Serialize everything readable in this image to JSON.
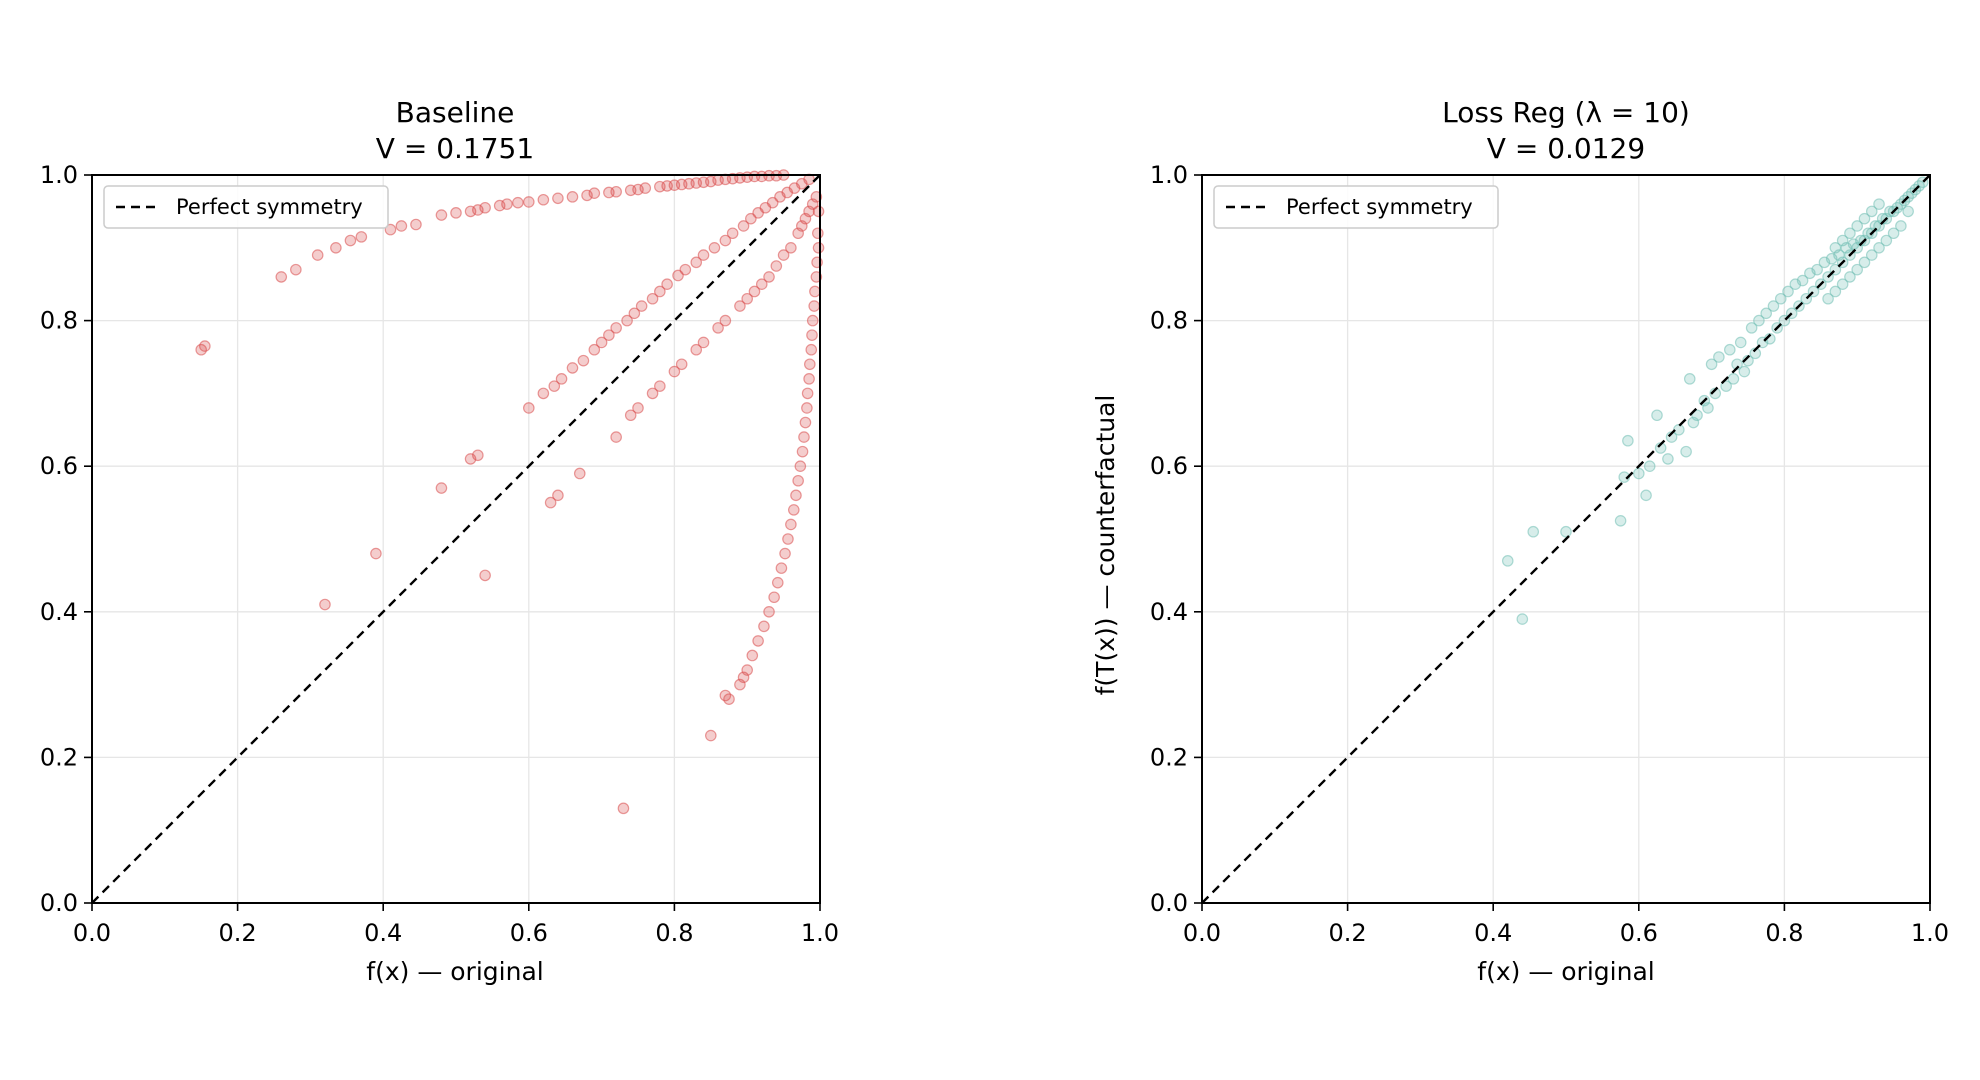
{
  "chart_data": [
    {
      "type": "scatter",
      "title": "Baseline",
      "subtitle": "V = 0.1751",
      "xlabel": "f(x)  — original",
      "ylabel": "",
      "xlim": [
        0,
        1
      ],
      "ylim": [
        0,
        1
      ],
      "xticks": [
        "0.0",
        "0.2",
        "0.4",
        "0.6",
        "0.8",
        "1.0"
      ],
      "yticks": [
        "0.0",
        "0.2",
        "0.4",
        "0.6",
        "0.8",
        "1.0"
      ],
      "grid": true,
      "legend": {
        "placement": "top-left",
        "entries": [
          "Perfect symmetry"
        ]
      },
      "reference_line": {
        "name": "Perfect symmetry",
        "from": [
          0,
          0
        ],
        "to": [
          1,
          1
        ],
        "style": "dashed",
        "color": "#000000"
      },
      "point_color": "#d94a4a",
      "points": [
        [
          0.15,
          0.76
        ],
        [
          0.155,
          0.765
        ],
        [
          0.26,
          0.86
        ],
        [
          0.28,
          0.87
        ],
        [
          0.31,
          0.89
        ],
        [
          0.335,
          0.9
        ],
        [
          0.355,
          0.91
        ],
        [
          0.37,
          0.915
        ],
        [
          0.41,
          0.925
        ],
        [
          0.425,
          0.93
        ],
        [
          0.445,
          0.932
        ],
        [
          0.48,
          0.945
        ],
        [
          0.5,
          0.948
        ],
        [
          0.52,
          0.95
        ],
        [
          0.53,
          0.952
        ],
        [
          0.54,
          0.955
        ],
        [
          0.56,
          0.958
        ],
        [
          0.57,
          0.96
        ],
        [
          0.585,
          0.962
        ],
        [
          0.6,
          0.963
        ],
        [
          0.62,
          0.966
        ],
        [
          0.64,
          0.968
        ],
        [
          0.66,
          0.97
        ],
        [
          0.68,
          0.972
        ],
        [
          0.69,
          0.975
        ],
        [
          0.71,
          0.976
        ],
        [
          0.72,
          0.977
        ],
        [
          0.74,
          0.979
        ],
        [
          0.75,
          0.98
        ],
        [
          0.76,
          0.982
        ],
        [
          0.78,
          0.984
        ],
        [
          0.79,
          0.985
        ],
        [
          0.8,
          0.986
        ],
        [
          0.81,
          0.987
        ],
        [
          0.82,
          0.988
        ],
        [
          0.83,
          0.989
        ],
        [
          0.84,
          0.99
        ],
        [
          0.85,
          0.991
        ],
        [
          0.86,
          0.993
        ],
        [
          0.87,
          0.994
        ],
        [
          0.88,
          0.995
        ],
        [
          0.89,
          0.996
        ],
        [
          0.9,
          0.997
        ],
        [
          0.91,
          0.998
        ],
        [
          0.92,
          0.998
        ],
        [
          0.93,
          0.999
        ],
        [
          0.94,
          0.999
        ],
        [
          0.95,
          1.0
        ],
        [
          0.6,
          0.68
        ],
        [
          0.62,
          0.7
        ],
        [
          0.635,
          0.71
        ],
        [
          0.645,
          0.72
        ],
        [
          0.66,
          0.735
        ],
        [
          0.675,
          0.745
        ],
        [
          0.69,
          0.76
        ],
        [
          0.7,
          0.77
        ],
        [
          0.71,
          0.78
        ],
        [
          0.72,
          0.79
        ],
        [
          0.735,
          0.8
        ],
        [
          0.745,
          0.81
        ],
        [
          0.755,
          0.82
        ],
        [
          0.77,
          0.83
        ],
        [
          0.78,
          0.84
        ],
        [
          0.79,
          0.85
        ],
        [
          0.805,
          0.862
        ],
        [
          0.815,
          0.87
        ],
        [
          0.83,
          0.88
        ],
        [
          0.84,
          0.89
        ],
        [
          0.855,
          0.9
        ],
        [
          0.87,
          0.91
        ],
        [
          0.88,
          0.92
        ],
        [
          0.895,
          0.93
        ],
        [
          0.905,
          0.94
        ],
        [
          0.915,
          0.948
        ],
        [
          0.925,
          0.955
        ],
        [
          0.935,
          0.962
        ],
        [
          0.945,
          0.97
        ],
        [
          0.955,
          0.976
        ],
        [
          0.965,
          0.982
        ],
        [
          0.975,
          0.988
        ],
        [
          0.985,
          0.994
        ],
        [
          0.48,
          0.57
        ],
        [
          0.52,
          0.61
        ],
        [
          0.53,
          0.615
        ],
        [
          0.63,
          0.55
        ],
        [
          0.64,
          0.56
        ],
        [
          0.67,
          0.59
        ],
        [
          0.72,
          0.64
        ],
        [
          0.74,
          0.67
        ],
        [
          0.75,
          0.68
        ],
        [
          0.77,
          0.7
        ],
        [
          0.78,
          0.71
        ],
        [
          0.8,
          0.73
        ],
        [
          0.81,
          0.74
        ],
        [
          0.83,
          0.76
        ],
        [
          0.84,
          0.77
        ],
        [
          0.86,
          0.79
        ],
        [
          0.87,
          0.8
        ],
        [
          0.89,
          0.82
        ],
        [
          0.9,
          0.83
        ],
        [
          0.91,
          0.84
        ],
        [
          0.92,
          0.85
        ],
        [
          0.93,
          0.86
        ],
        [
          0.94,
          0.875
        ],
        [
          0.95,
          0.89
        ],
        [
          0.96,
          0.9
        ],
        [
          0.97,
          0.92
        ],
        [
          0.975,
          0.93
        ],
        [
          0.98,
          0.94
        ],
        [
          0.985,
          0.95
        ],
        [
          0.99,
          0.96
        ],
        [
          0.995,
          0.97
        ],
        [
          0.998,
          0.95
        ],
        [
          0.997,
          0.92
        ],
        [
          0.998,
          0.9
        ],
        [
          0.996,
          0.88
        ],
        [
          0.995,
          0.86
        ],
        [
          0.993,
          0.84
        ],
        [
          0.992,
          0.82
        ],
        [
          0.99,
          0.8
        ],
        [
          0.989,
          0.78
        ],
        [
          0.988,
          0.76
        ],
        [
          0.986,
          0.74
        ],
        [
          0.985,
          0.72
        ],
        [
          0.983,
          0.7
        ],
        [
          0.982,
          0.68
        ],
        [
          0.98,
          0.66
        ],
        [
          0.978,
          0.64
        ],
        [
          0.976,
          0.62
        ],
        [
          0.973,
          0.6
        ],
        [
          0.97,
          0.58
        ],
        [
          0.967,
          0.56
        ],
        [
          0.964,
          0.54
        ],
        [
          0.96,
          0.52
        ],
        [
          0.956,
          0.5
        ],
        [
          0.952,
          0.48
        ],
        [
          0.947,
          0.46
        ],
        [
          0.942,
          0.44
        ],
        [
          0.937,
          0.42
        ],
        [
          0.93,
          0.4
        ],
        [
          0.923,
          0.38
        ],
        [
          0.915,
          0.36
        ],
        [
          0.907,
          0.34
        ],
        [
          0.9,
          0.32
        ],
        [
          0.895,
          0.31
        ],
        [
          0.89,
          0.3
        ],
        [
          0.875,
          0.28
        ],
        [
          0.87,
          0.285
        ],
        [
          0.85,
          0.23
        ],
        [
          0.32,
          0.41
        ],
        [
          0.39,
          0.48
        ],
        [
          0.54,
          0.45
        ],
        [
          0.73,
          0.13
        ]
      ]
    },
    {
      "type": "scatter",
      "title": "Loss Reg  (λ = 10)",
      "subtitle": "V = 0.0129",
      "xlabel": "f(x)  — original",
      "ylabel": "f(T(x))  — counterfactual",
      "xlim": [
        0,
        1
      ],
      "ylim": [
        0,
        1
      ],
      "xticks": [
        "0.0",
        "0.2",
        "0.4",
        "0.6",
        "0.8",
        "1.0"
      ],
      "yticks": [
        "0.0",
        "0.2",
        "0.4",
        "0.6",
        "0.8",
        "1.0"
      ],
      "grid": true,
      "legend": {
        "placement": "top-left",
        "entries": [
          "Perfect symmetry"
        ]
      },
      "reference_line": {
        "name": "Perfect symmetry",
        "from": [
          0,
          0
        ],
        "to": [
          1,
          1
        ],
        "style": "dashed",
        "color": "#000000"
      },
      "point_color": "#6fbdb2",
      "points": [
        [
          0.42,
          0.47
        ],
        [
          0.44,
          0.39
        ],
        [
          0.455,
          0.51
        ],
        [
          0.5,
          0.51
        ],
        [
          0.575,
          0.525
        ],
        [
          0.58,
          0.585
        ],
        [
          0.585,
          0.635
        ],
        [
          0.6,
          0.59
        ],
        [
          0.61,
          0.56
        ],
        [
          0.615,
          0.6
        ],
        [
          0.625,
          0.67
        ],
        [
          0.63,
          0.625
        ],
        [
          0.64,
          0.61
        ],
        [
          0.645,
          0.64
        ],
        [
          0.655,
          0.65
        ],
        [
          0.665,
          0.62
        ],
        [
          0.67,
          0.72
        ],
        [
          0.675,
          0.66
        ],
        [
          0.68,
          0.67
        ],
        [
          0.69,
          0.69
        ],
        [
          0.695,
          0.68
        ],
        [
          0.7,
          0.74
        ],
        [
          0.705,
          0.7
        ],
        [
          0.71,
          0.75
        ],
        [
          0.72,
          0.71
        ],
        [
          0.725,
          0.76
        ],
        [
          0.73,
          0.72
        ],
        [
          0.735,
          0.74
        ],
        [
          0.74,
          0.77
        ],
        [
          0.745,
          0.73
        ],
        [
          0.75,
          0.745
        ],
        [
          0.755,
          0.79
        ],
        [
          0.76,
          0.755
        ],
        [
          0.765,
          0.8
        ],
        [
          0.77,
          0.77
        ],
        [
          0.775,
          0.81
        ],
        [
          0.78,
          0.775
        ],
        [
          0.785,
          0.82
        ],
        [
          0.79,
          0.79
        ],
        [
          0.795,
          0.83
        ],
        [
          0.8,
          0.8
        ],
        [
          0.805,
          0.84
        ],
        [
          0.81,
          0.81
        ],
        [
          0.815,
          0.85
        ],
        [
          0.82,
          0.82
        ],
        [
          0.825,
          0.855
        ],
        [
          0.83,
          0.83
        ],
        [
          0.835,
          0.865
        ],
        [
          0.84,
          0.84
        ],
        [
          0.845,
          0.87
        ],
        [
          0.85,
          0.85
        ],
        [
          0.855,
          0.88
        ],
        [
          0.86,
          0.86
        ],
        [
          0.865,
          0.885
        ],
        [
          0.87,
          0.87
        ],
        [
          0.875,
          0.89
        ],
        [
          0.88,
          0.88
        ],
        [
          0.885,
          0.9
        ],
        [
          0.89,
          0.89
        ],
        [
          0.895,
          0.905
        ],
        [
          0.9,
          0.9
        ],
        [
          0.905,
          0.91
        ],
        [
          0.91,
          0.91
        ],
        [
          0.915,
          0.92
        ],
        [
          0.92,
          0.92
        ],
        [
          0.925,
          0.93
        ],
        [
          0.93,
          0.93
        ],
        [
          0.935,
          0.94
        ],
        [
          0.94,
          0.94
        ],
        [
          0.945,
          0.95
        ],
        [
          0.95,
          0.95
        ],
        [
          0.955,
          0.955
        ],
        [
          0.96,
          0.96
        ],
        [
          0.965,
          0.965
        ],
        [
          0.97,
          0.97
        ],
        [
          0.975,
          0.975
        ],
        [
          0.98,
          0.98
        ],
        [
          0.985,
          0.985
        ],
        [
          0.99,
          0.99
        ],
        [
          0.87,
          0.9
        ],
        [
          0.88,
          0.91
        ],
        [
          0.89,
          0.92
        ],
        [
          0.9,
          0.93
        ],
        [
          0.91,
          0.94
        ],
        [
          0.92,
          0.95
        ],
        [
          0.93,
          0.96
        ],
        [
          0.86,
          0.83
        ],
        [
          0.87,
          0.84
        ],
        [
          0.88,
          0.85
        ],
        [
          0.89,
          0.86
        ],
        [
          0.9,
          0.87
        ],
        [
          0.91,
          0.88
        ],
        [
          0.92,
          0.89
        ],
        [
          0.93,
          0.9
        ],
        [
          0.94,
          0.91
        ],
        [
          0.95,
          0.92
        ],
        [
          0.96,
          0.93
        ],
        [
          0.97,
          0.95
        ]
      ]
    }
  ]
}
